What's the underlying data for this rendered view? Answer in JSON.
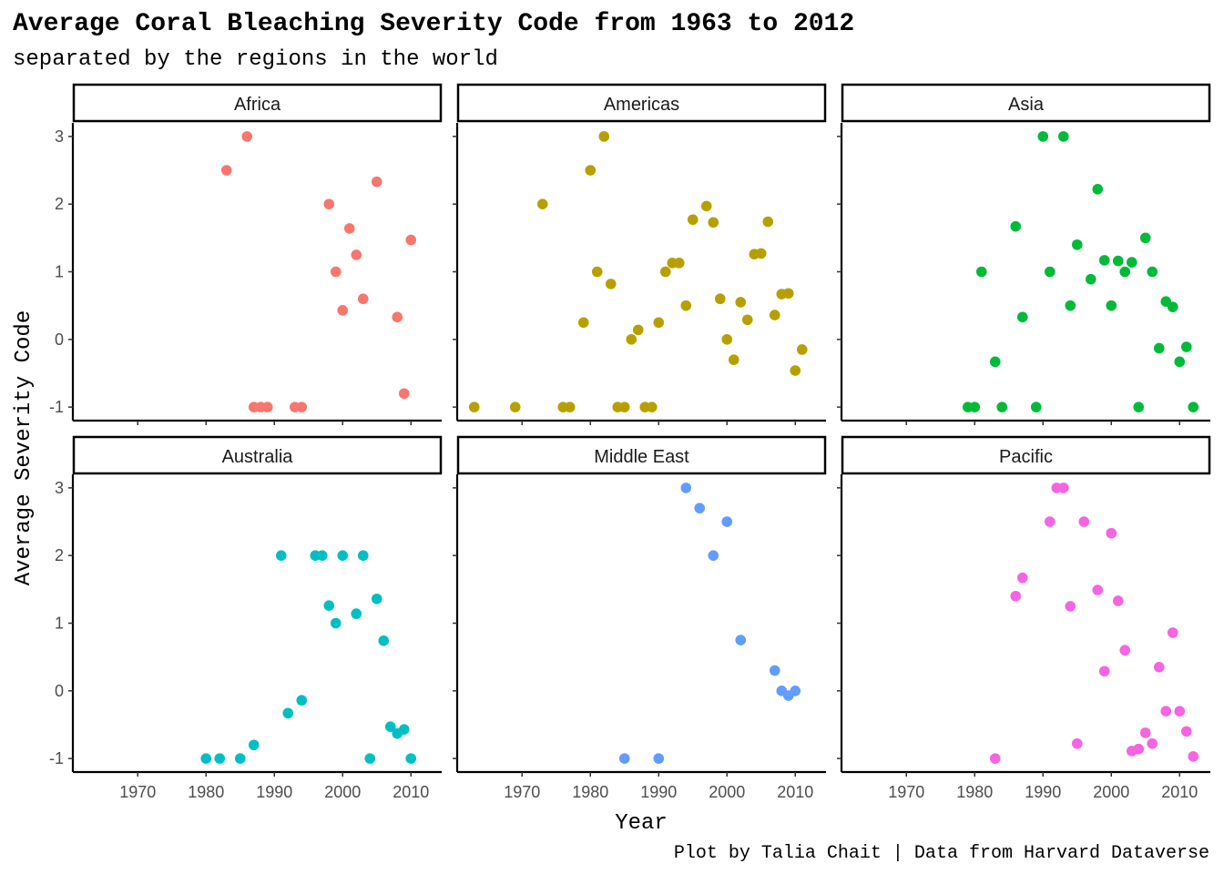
{
  "chart_data": {
    "type": "scatter",
    "title": "Average Coral Bleaching Severity Code from 1963 to 2012",
    "subtitle": "separated by the regions in the world",
    "xlabel": "Year",
    "ylabel": "Average Severity Code",
    "caption": "Plot by Talia Chait | Data from Harvard Dataverse",
    "xlim": [
      1960.5,
      2014.5
    ],
    "ylim": [
      -1.2,
      3.2
    ],
    "x_ticks": [
      1970,
      1980,
      1990,
      2000,
      2010
    ],
    "y_ticks": [
      -1,
      0,
      1,
      2,
      3
    ],
    "grid": false,
    "legend": "none",
    "layout": "facet 2 rows x 3 columns",
    "panels": [
      {
        "name": "Africa",
        "color": "#F8766D",
        "points": [
          [
            1983,
            2.5
          ],
          [
            1986,
            3
          ],
          [
            1987,
            -1
          ],
          [
            1988,
            -1
          ],
          [
            1989,
            -1
          ],
          [
            1993,
            -1
          ],
          [
            1994,
            -1
          ],
          [
            1998,
            2
          ],
          [
            1999,
            1
          ],
          [
            2000,
            0.43
          ],
          [
            2001,
            1.64
          ],
          [
            2002,
            1.25
          ],
          [
            2003,
            0.6
          ],
          [
            2005,
            2.33
          ],
          [
            2008,
            0.33
          ],
          [
            2009,
            -0.8
          ],
          [
            2010,
            1.47
          ]
        ]
      },
      {
        "name": "Americas",
        "color": "#B79F00",
        "points": [
          [
            1963,
            -1
          ],
          [
            1969,
            -1
          ],
          [
            1973,
            2
          ],
          [
            1976,
            -1
          ],
          [
            1977,
            -1
          ],
          [
            1979,
            0.25
          ],
          [
            1980,
            2.5
          ],
          [
            1981,
            1
          ],
          [
            1982,
            3
          ],
          [
            1983,
            0.82
          ],
          [
            1984,
            -1
          ],
          [
            1985,
            -1
          ],
          [
            1986,
            0
          ],
          [
            1987,
            0.14
          ],
          [
            1988,
            -1
          ],
          [
            1989,
            -1
          ],
          [
            1990,
            0.25
          ],
          [
            1991,
            1
          ],
          [
            1992,
            1.13
          ],
          [
            1993,
            1.13
          ],
          [
            1994,
            0.5
          ],
          [
            1995,
            1.77
          ],
          [
            1997,
            1.97
          ],
          [
            1998,
            1.73
          ],
          [
            1999,
            0.6
          ],
          [
            2000,
            0
          ],
          [
            2001,
            -0.3
          ],
          [
            2002,
            0.55
          ],
          [
            2003,
            0.29
          ],
          [
            2004,
            1.26
          ],
          [
            2005,
            1.27
          ],
          [
            2006,
            1.74
          ],
          [
            2007,
            0.36
          ],
          [
            2008,
            0.67
          ],
          [
            2009,
            0.68
          ],
          [
            2010,
            -0.46
          ],
          [
            2011,
            -0.15
          ]
        ]
      },
      {
        "name": "Asia",
        "color": "#00BA38",
        "points": [
          [
            1979,
            -1
          ],
          [
            1980,
            -1
          ],
          [
            1981,
            1
          ],
          [
            1983,
            -0.33
          ],
          [
            1984,
            -1
          ],
          [
            1986,
            1.67
          ],
          [
            1987,
            0.33
          ],
          [
            1989,
            -1
          ],
          [
            1990,
            3
          ],
          [
            1991,
            1
          ],
          [
            1993,
            3
          ],
          [
            1994,
            0.5
          ],
          [
            1995,
            1.4
          ],
          [
            1997,
            0.89
          ],
          [
            1998,
            2.22
          ],
          [
            1999,
            1.17
          ],
          [
            2000,
            0.5
          ],
          [
            2001,
            1.16
          ],
          [
            2002,
            1
          ],
          [
            2003,
            1.14
          ],
          [
            2004,
            -1
          ],
          [
            2005,
            1.5
          ],
          [
            2006,
            1
          ],
          [
            2007,
            -0.13
          ],
          [
            2008,
            0.56
          ],
          [
            2009,
            0.48
          ],
          [
            2010,
            -0.33
          ],
          [
            2011,
            -0.11
          ],
          [
            2012,
            -1
          ]
        ]
      },
      {
        "name": "Australia",
        "color": "#00BFC4",
        "points": [
          [
            1980,
            -1
          ],
          [
            1982,
            -1
          ],
          [
            1985,
            -1
          ],
          [
            1987,
            -0.8
          ],
          [
            1991,
            2
          ],
          [
            1992,
            -0.33
          ],
          [
            1994,
            -0.14
          ],
          [
            1996,
            2
          ],
          [
            1997,
            2
          ],
          [
            1998,
            1.26
          ],
          [
            1999,
            1
          ],
          [
            2000,
            2
          ],
          [
            2002,
            1.14
          ],
          [
            2003,
            2
          ],
          [
            2004,
            -1
          ],
          [
            2005,
            1.36
          ],
          [
            2006,
            0.74
          ],
          [
            2007,
            -0.53
          ],
          [
            2008,
            -0.63
          ],
          [
            2009,
            -0.57
          ],
          [
            2010,
            -1
          ]
        ]
      },
      {
        "name": "Middle East",
        "color": "#619CFF",
        "points": [
          [
            1985,
            -1
          ],
          [
            1990,
            -1
          ],
          [
            1994,
            3
          ],
          [
            1996,
            2.7
          ],
          [
            1998,
            2
          ],
          [
            2000,
            2.5
          ],
          [
            2002,
            0.75
          ],
          [
            2007,
            0.3
          ],
          [
            2008,
            0
          ],
          [
            2009,
            -0.07
          ],
          [
            2010,
            0
          ]
        ]
      },
      {
        "name": "Pacific",
        "color": "#F564E3",
        "points": [
          [
            1983,
            -1
          ],
          [
            1986,
            1.4
          ],
          [
            1987,
            1.67
          ],
          [
            1991,
            2.5
          ],
          [
            1992,
            3
          ],
          [
            1993,
            3
          ],
          [
            1994,
            1.25
          ],
          [
            1995,
            -0.78
          ],
          [
            1996,
            2.5
          ],
          [
            1998,
            1.49
          ],
          [
            1999,
            0.29
          ],
          [
            2000,
            2.33
          ],
          [
            2001,
            1.33
          ],
          [
            2002,
            0.6
          ],
          [
            2003,
            -0.89
          ],
          [
            2004,
            -0.86
          ],
          [
            2005,
            -0.62
          ],
          [
            2006,
            -0.78
          ],
          [
            2007,
            0.35
          ],
          [
            2008,
            -0.3
          ],
          [
            2009,
            0.86
          ],
          [
            2010,
            -0.3
          ],
          [
            2011,
            -0.6
          ],
          [
            2012,
            -0.97
          ]
        ]
      }
    ]
  }
}
